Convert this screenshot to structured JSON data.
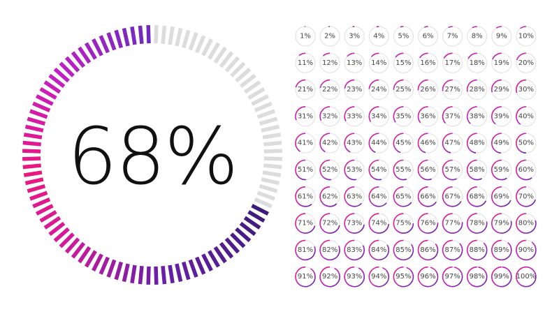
{
  "main": {
    "label": "68%",
    "value": 68
  },
  "grid": {
    "labels": [
      "1%",
      "2%",
      "3%",
      "4%",
      "5%",
      "6%",
      "7%",
      "8%",
      "9%",
      "10%",
      "11%",
      "12%",
      "13%",
      "14%",
      "15%",
      "16%",
      "17%",
      "18%",
      "19%",
      "20%",
      "21%",
      "22%",
      "23%",
      "24%",
      "25%",
      "26%",
      "27%",
      "28%",
      "29%",
      "30%",
      "31%",
      "32%",
      "33%",
      "34%",
      "35%",
      "36%",
      "37%",
      "38%",
      "39%",
      "40%",
      "41%",
      "42%",
      "43%",
      "44%",
      "45%",
      "46%",
      "47%",
      "48%",
      "49%",
      "50%",
      "51%",
      "52%",
      "53%",
      "54%",
      "55%",
      "56%",
      "57%",
      "58%",
      "59%",
      "60%",
      "61%",
      "62%",
      "63%",
      "64%",
      "65%",
      "66%",
      "67%",
      "68%",
      "69%",
      "70%",
      "71%",
      "72%",
      "73%",
      "74%",
      "75%",
      "76%",
      "77%",
      "78%",
      "79%",
      "80%",
      "81%",
      "82%",
      "83%",
      "84%",
      "85%",
      "86%",
      "87%",
      "88%",
      "89%",
      "90%",
      "91%",
      "92%",
      "93%",
      "94%",
      "95%",
      "96%",
      "97%",
      "98%",
      "99%",
      "100%"
    ],
    "values": [
      1,
      2,
      3,
      4,
      5,
      6,
      7,
      8,
      9,
      10,
      11,
      12,
      13,
      14,
      15,
      16,
      17,
      18,
      19,
      20,
      21,
      22,
      23,
      24,
      25,
      26,
      27,
      28,
      29,
      30,
      31,
      32,
      33,
      34,
      35,
      36,
      37,
      38,
      39,
      40,
      41,
      42,
      43,
      44,
      45,
      46,
      47,
      48,
      49,
      50,
      51,
      52,
      53,
      54,
      55,
      56,
      57,
      58,
      59,
      60,
      61,
      62,
      63,
      64,
      65,
      66,
      67,
      68,
      69,
      70,
      71,
      72,
      73,
      74,
      75,
      76,
      77,
      78,
      79,
      80,
      81,
      82,
      83,
      84,
      85,
      86,
      87,
      88,
      89,
      90,
      91,
      92,
      93,
      94,
      95,
      96,
      97,
      98,
      99,
      100
    ]
  }
}
